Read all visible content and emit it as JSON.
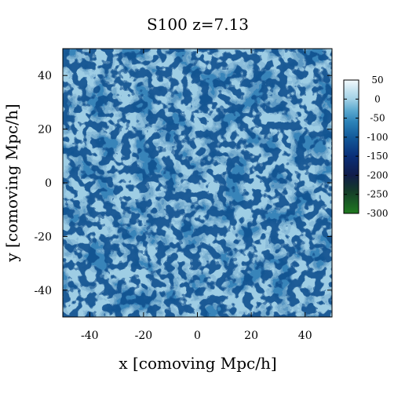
{
  "chart_data": {
    "type": "heatmap",
    "title": "S100 z=7.13",
    "xlabel": "x [comoving Mpc/h]",
    "ylabel": "y [comoving Mpc/h]",
    "xlim": [
      -50,
      50
    ],
    "ylim": [
      -50,
      50
    ],
    "x_ticks": [
      -40,
      -20,
      0,
      20,
      40
    ],
    "y_ticks": [
      -40,
      -20,
      0,
      20,
      40
    ],
    "colorbar": {
      "range": [
        -300,
        50
      ],
      "ticks": [
        50,
        0,
        -50,
        -100,
        -150,
        -200,
        -250,
        -300
      ],
      "colors": [
        {
          "value": 50,
          "color": "#f4fafd"
        },
        {
          "value": 20,
          "color": "#bfe0ee"
        },
        {
          "value": 0,
          "color": "#a2d1e6"
        },
        {
          "value": -30,
          "color": "#5aa8cf"
        },
        {
          "value": -60,
          "color": "#2c82b8"
        },
        {
          "value": -100,
          "color": "#135a9a"
        },
        {
          "value": -150,
          "color": "#0a2f78"
        },
        {
          "value": -200,
          "color": "#101c4a"
        },
        {
          "value": -240,
          "color": "#143a2a"
        },
        {
          "value": -300,
          "color": "#1f7a1f"
        }
      ]
    },
    "grid": false
  }
}
